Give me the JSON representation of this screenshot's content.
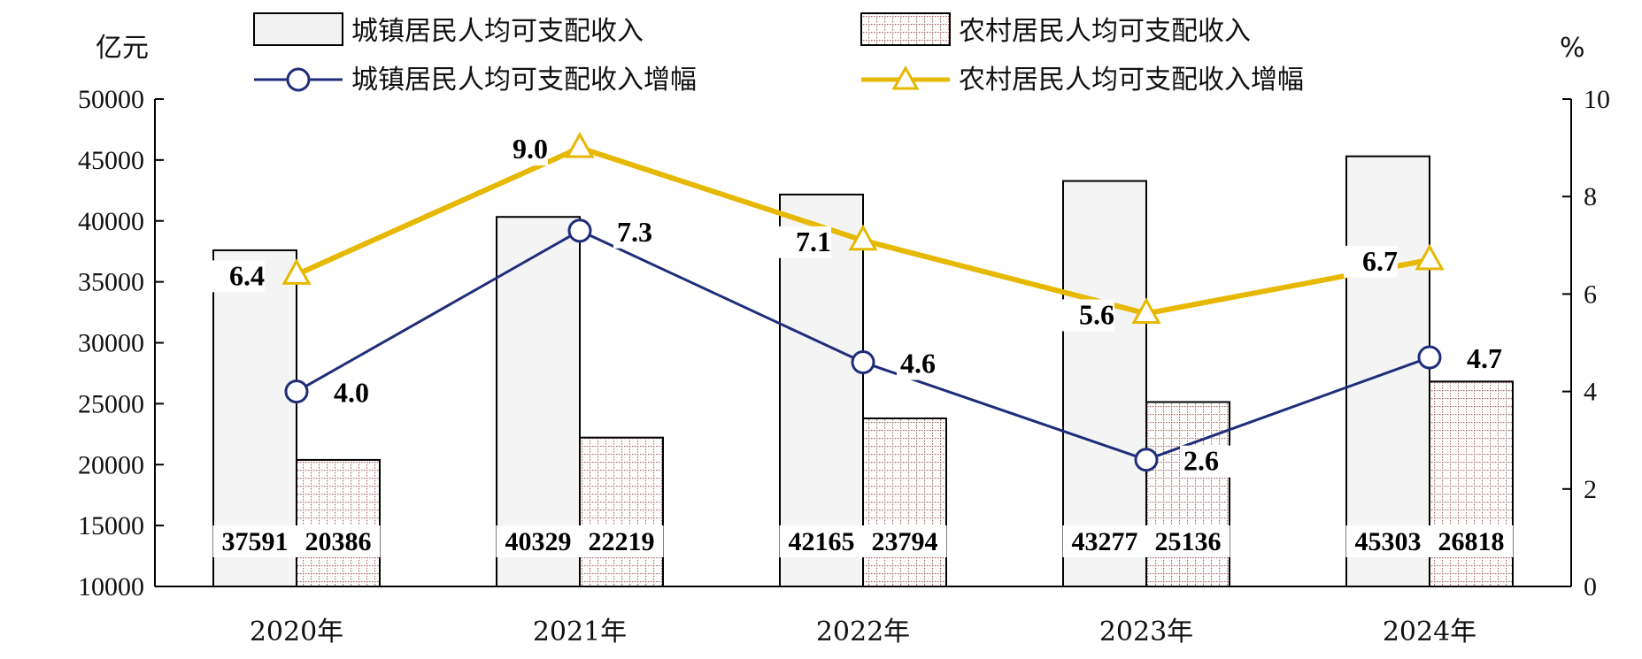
{
  "chart_data": {
    "type": "bar",
    "categories": [
      "2020年",
      "2021年",
      "2022年",
      "2023年",
      "2024年"
    ],
    "left_axis_unit": "亿元",
    "right_axis_unit": "%",
    "left_ylim": [
      10000,
      50000
    ],
    "left_ticks": [
      "10000",
      "15000",
      "20000",
      "25000",
      "30000",
      "35000",
      "40000",
      "45000",
      "50000"
    ],
    "right_ylim": [
      0,
      10
    ],
    "right_ticks": [
      "0",
      "2",
      "4",
      "6",
      "8",
      "10"
    ],
    "series": [
      {
        "name": "城镇居民人均可支配收入",
        "kind": "bar",
        "values": [
          37591,
          40329,
          42165,
          43277,
          45303
        ],
        "labels": [
          "37591",
          "40329",
          "42165",
          "43277",
          "45303"
        ],
        "color": "#f2f2f2"
      },
      {
        "name": "农村居民人均可支配收入",
        "kind": "bar",
        "values": [
          20386,
          22219,
          23794,
          25136,
          26818
        ],
        "labels": [
          "20386",
          "22219",
          "23794",
          "25136",
          "26818"
        ],
        "color": "#b07070"
      },
      {
        "name": "城镇居民人均可支配收入增幅",
        "kind": "line",
        "axis": "right",
        "values": [
          4.0,
          7.3,
          4.6,
          2.6,
          4.7
        ],
        "labels": [
          "4.0",
          "7.3",
          "4.6",
          "2.6",
          "4.7"
        ],
        "color": "#1f2d7a"
      },
      {
        "name": "农村居民人均可支配收入增幅",
        "kind": "line",
        "axis": "right",
        "values": [
          6.4,
          9.0,
          7.1,
          5.6,
          6.7
        ],
        "labels": [
          "6.4",
          "9.0",
          "7.1",
          "5.6",
          "6.7"
        ],
        "color": "#e6b800"
      }
    ],
    "legend_position": "top"
  }
}
